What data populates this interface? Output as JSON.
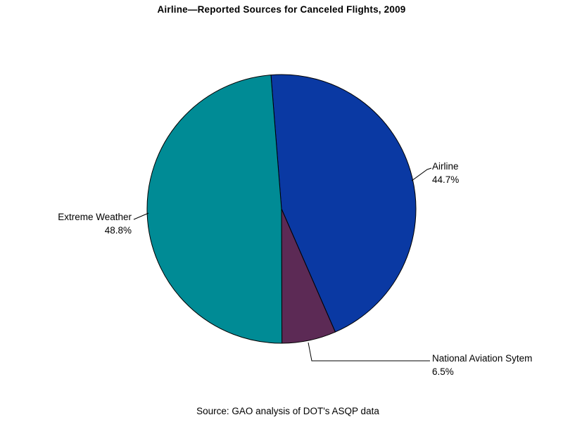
{
  "title": "Airline—Reported Sources for Canceled Flights, 2009",
  "source_note": "Source: GAO analysis of DOT's ASQP data",
  "chart_data": {
    "type": "pie",
    "title": "Airline—Reported Sources for Canceled Flights, 2009",
    "source": "Source: GAO analysis of DOT's ASQP data",
    "start_angle_deg": 94.5,
    "direction": "clockwise",
    "outline_color": "#000000",
    "background_color": "#ffffff",
    "legend_position": "none",
    "labels_style": "external-with-leader-lines",
    "slices": [
      {
        "label": "Airline",
        "value": 44.7,
        "pct_label": "44.7%",
        "color": "#0a39a3"
      },
      {
        "label": "National Aviation Sytem",
        "value": 6.5,
        "pct_label": "6.5%",
        "color": "#5c2a55"
      },
      {
        "label": "Extreme Weather",
        "value": 48.8,
        "pct_label": "48.8%",
        "color": "#008b95"
      }
    ]
  }
}
